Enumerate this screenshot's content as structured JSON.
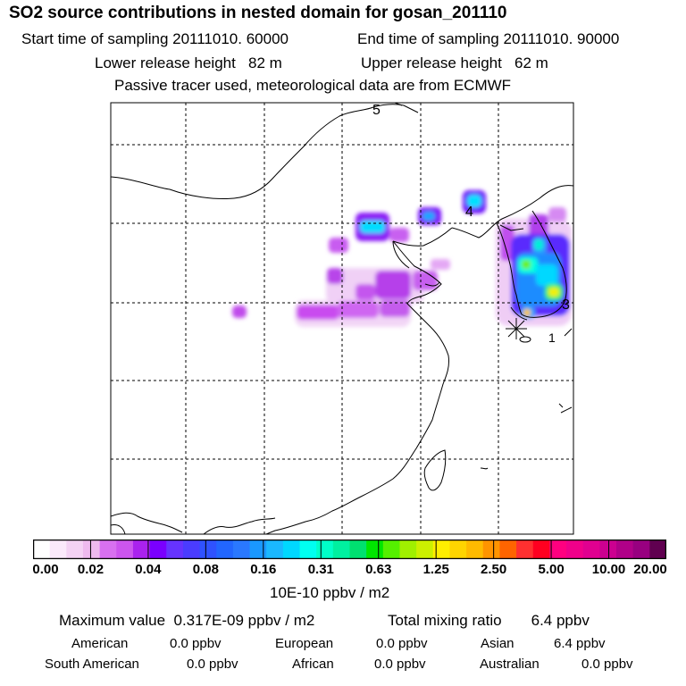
{
  "title": "SO2 source contributions in nested domain for gosan_201110",
  "sampling": {
    "start_label": "Start time of sampling",
    "start_value": "20111010. 60000",
    "end_label": "End time of sampling",
    "end_value": "20111010. 90000"
  },
  "release": {
    "lower_label": "Lower release height",
    "lower_value": "82 m",
    "upper_label": "Upper release height",
    "upper_value": "62 m"
  },
  "tracer_note": "Passive tracer used, meteorological data are from ECMWF",
  "map": {
    "markers": [
      "1",
      "3",
      "4",
      "5"
    ],
    "receptor": "gosan (star marker)"
  },
  "colorbar": {
    "ticks": [
      "0.00",
      "0.02",
      "0.04",
      "0.08",
      "0.16",
      "0.31",
      "0.63",
      "1.25",
      "2.50",
      "5.00",
      "10.00",
      "20.00"
    ],
    "colors": [
      "#ffffff",
      "#fbe9fb",
      "#f4d2f4",
      "#eebaee",
      "#d870f0",
      "#cc55ee",
      "#aa22ee",
      "#7a00ff",
      "#6633ff",
      "#4a3cff",
      "#2f52ff",
      "#2266ff",
      "#2a78ff",
      "#1a98ff",
      "#1ab8ff",
      "#00d8ff",
      "#00fff0",
      "#00ffc8",
      "#00f0a0",
      "#00e070",
      "#00e600",
      "#55f000",
      "#a0f000",
      "#ccf000",
      "#ffee00",
      "#ffd400",
      "#ffba00",
      "#ff9400",
      "#ff6400",
      "#ff3030",
      "#ff0020",
      "#ff0080",
      "#f0008a",
      "#e00090",
      "#cc0090",
      "#b00088",
      "#980080",
      "#600050"
    ],
    "unit": "10E-10 ppbv / m2"
  },
  "summary": {
    "max_label": "Maximum value",
    "max_value": "0.317E-09 ppbv / m2",
    "total_label": "Total mixing ratio",
    "total_value": "6.4 ppbv"
  },
  "regions": [
    {
      "name": "American",
      "value": "0.0 ppbv"
    },
    {
      "name": "European",
      "value": "0.0 ppbv"
    },
    {
      "name": "Asian",
      "value": "6.4 ppbv"
    },
    {
      "name": "South American",
      "value": "0.0 ppbv"
    },
    {
      "name": "African",
      "value": "0.0 ppbv"
    },
    {
      "name": "Australian",
      "value": "0.0 ppbv"
    }
  ]
}
